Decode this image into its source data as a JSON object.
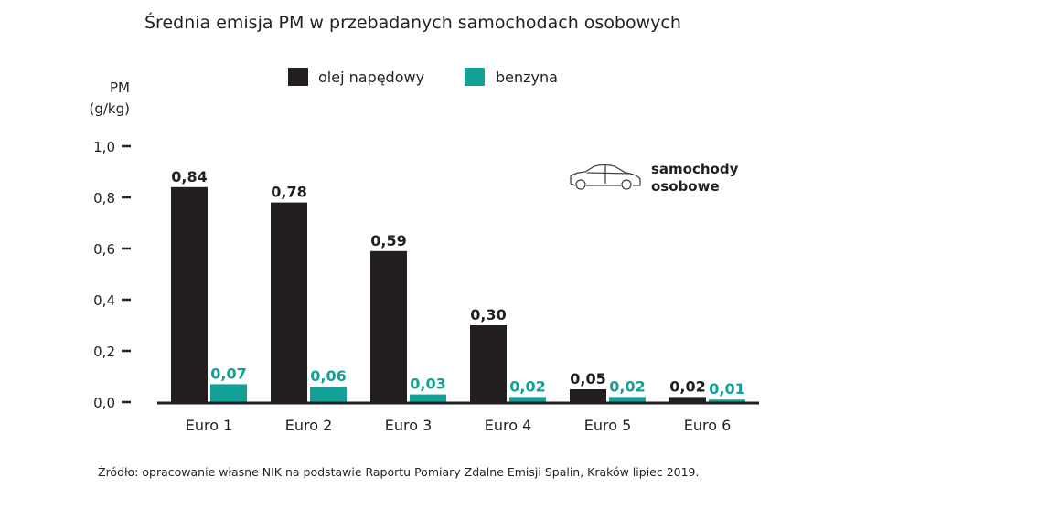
{
  "chart_data": {
    "type": "bar",
    "title": "Średnia emisja PM w przebadanych samochodach osobowych",
    "ylabel_line1": "PM",
    "ylabel_line2": "(g/kg)",
    "xlabel": "",
    "ylim": [
      0,
      1.0
    ],
    "yticks": [
      "0,0",
      "0,2",
      "0,4",
      "0,6",
      "0,8",
      "1,0"
    ],
    "categories": [
      "Euro 1",
      "Euro 2",
      "Euro 3",
      "Euro 4",
      "Euro 5",
      "Euro 6"
    ],
    "series": [
      {
        "name": "olej napędowy",
        "color": "#231f20",
        "values": [
          0.84,
          0.78,
          0.59,
          0.3,
          0.05,
          0.02
        ],
        "labels": [
          "0,84",
          "0,78",
          "0,59",
          "0,30",
          "0,05",
          "0,02"
        ]
      },
      {
        "name": "benzyna",
        "color": "#13a096",
        "values": [
          0.07,
          0.06,
          0.03,
          0.02,
          0.02,
          0.01
        ],
        "labels": [
          "0,07",
          "0,06",
          "0,03",
          "0,02",
          "0,02",
          "0,01"
        ]
      }
    ],
    "legend_position": "top",
    "grid": false,
    "annotation": {
      "icon": "car-icon",
      "line1": "samochody",
      "line2": "osobowe"
    },
    "source": "Źródło: opracowanie własne NIK na podstawie Raportu Pomiary Zdalne Emisji Spalin, Kraków lipiec 2019."
  }
}
